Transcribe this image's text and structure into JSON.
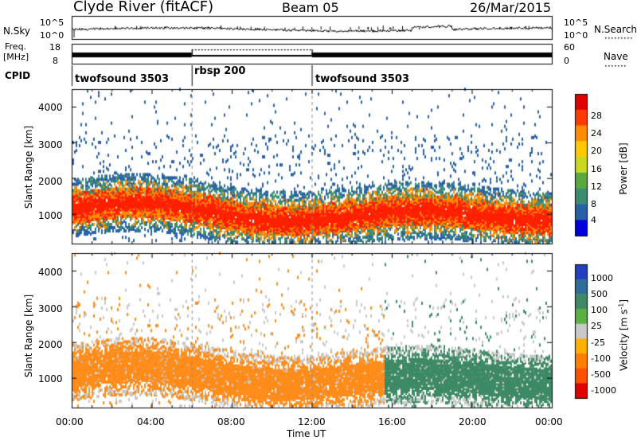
{
  "header": {
    "station": "Clyde River (fitACF)",
    "beam": "Beam 05",
    "date": "26/Mar/2015"
  },
  "top_panels": {
    "nsky": {
      "label": "N.Sky",
      "ticks": [
        "10^5",
        "10^0"
      ]
    },
    "nsearch": {
      "label": "N.Search",
      "ticks": [
        "10^5",
        "10^0"
      ]
    },
    "freq": {
      "label_line1": "Freq.",
      "label_line2": "[MHz]",
      "ticks": [
        "18",
        "8"
      ]
    },
    "nave": {
      "label": "Nave",
      "ticks": [
        "60",
        "0"
      ]
    },
    "cpid": {
      "label": "CPID",
      "segments": [
        {
          "name": "twofsound 3503",
          "start_hour": 0,
          "end_hour": 6
        },
        {
          "name": "rbsp 200",
          "start_hour": 6,
          "end_hour": 12
        },
        {
          "name": "twofsound 3503",
          "start_hour": 12,
          "end_hour": 24
        }
      ]
    }
  },
  "chart_data": [
    {
      "type": "heatmap",
      "panel": "power",
      "ylabel": "Slant Range [km]",
      "yticks": [
        "1000",
        "2000",
        "3000",
        "4000"
      ],
      "ylim": [
        180,
        4500
      ],
      "xlim_hours": [
        0,
        24
      ],
      "colorbar_label": "Power [dB]",
      "colorbar_ticks": [
        "28",
        "24",
        "20",
        "16",
        "12",
        "8",
        "4"
      ],
      "colorbar_colors": [
        "#e00000",
        "#ff3a00",
        "#ff8c00",
        "#ffc800",
        "#c8d820",
        "#5aa840",
        "#3c8c6e",
        "#2860a8",
        "#0000e0"
      ],
      "main_echo_band_km": [
        500,
        1800
      ],
      "colors": {
        "strong": "#ff2000",
        "medium": "#ff8c00",
        "weak": "#3c8c6e",
        "faint": "#2860a8"
      }
    },
    {
      "type": "heatmap",
      "panel": "velocity",
      "ylabel": "Slant Range [km]",
      "yticks": [
        "1000",
        "2000",
        "3000",
        "4000"
      ],
      "ylim": [
        180,
        4500
      ],
      "xlim_hours": [
        0,
        24
      ],
      "colorbar_label": "Velocity [m s^-1]",
      "colorbar_ticks": [
        "1000",
        "500",
        "100",
        "25",
        "-25",
        "-100",
        "-500",
        "-1000"
      ],
      "colorbar_colors": [
        "#2040c0",
        "#2e6e9a",
        "#3d8a64",
        "#5ab040",
        "#c8c8c8",
        "#ffb000",
        "#ff8000",
        "#ff5000",
        "#e00000"
      ],
      "main_echo_band_km": [
        500,
        1800
      ],
      "sign_change_hour": 15.6,
      "colors": {
        "before": "#ff8c1a",
        "after": "#3d8a64",
        "ground": "#c8c8c8"
      }
    }
  ],
  "xaxis": {
    "label": "Time UT",
    "ticks": [
      "00:00",
      "04:00",
      "08:00",
      "12:00",
      "16:00",
      "20:00",
      "00:00"
    ]
  }
}
